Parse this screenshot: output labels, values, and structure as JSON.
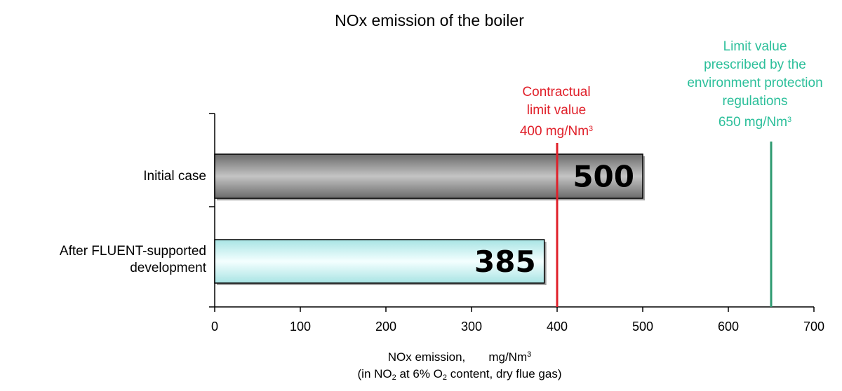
{
  "chart_data": {
    "type": "bar",
    "orientation": "horizontal",
    "title": "NOx emission of the boiler",
    "categories": [
      "Initial case",
      "After FLUENT-supported development"
    ],
    "category_lines": [
      [
        "Initial case"
      ],
      [
        "After FLUENT-supported",
        "development"
      ]
    ],
    "values": [
      500,
      385
    ],
    "value_labels": [
      "500",
      "385"
    ],
    "xlim": [
      0,
      700
    ],
    "xticks": [
      0,
      100,
      200,
      300,
      400,
      500,
      600,
      700
    ],
    "xlabel": {
      "line1_a": "NOx emission,",
      "line1_b": "mg/Nm",
      "line1_sup": "3",
      "line2_a": "(in NO",
      "line2_sub1": "2",
      "line2_b": " at 6% O",
      "line2_sub2": "2",
      "line2_c": " content, dry flue gas)"
    },
    "bar_colors": [
      "#8a8a8a",
      "#c8f0f0"
    ],
    "reference_lines": [
      {
        "value": 400,
        "color": "#e0202a",
        "label_lines": [
          "Contractual",
          "limit value"
        ],
        "value_text": "400 mg/Nm",
        "value_sup": "3"
      },
      {
        "value": 650,
        "color": "#2e9a70",
        "label_lines": [
          "Limit value",
          "prescribed by the",
          "environment protection",
          "regulations"
        ],
        "value_text": "650 mg/Nm",
        "value_sup": "3"
      }
    ],
    "grid": false,
    "legend": "none"
  }
}
